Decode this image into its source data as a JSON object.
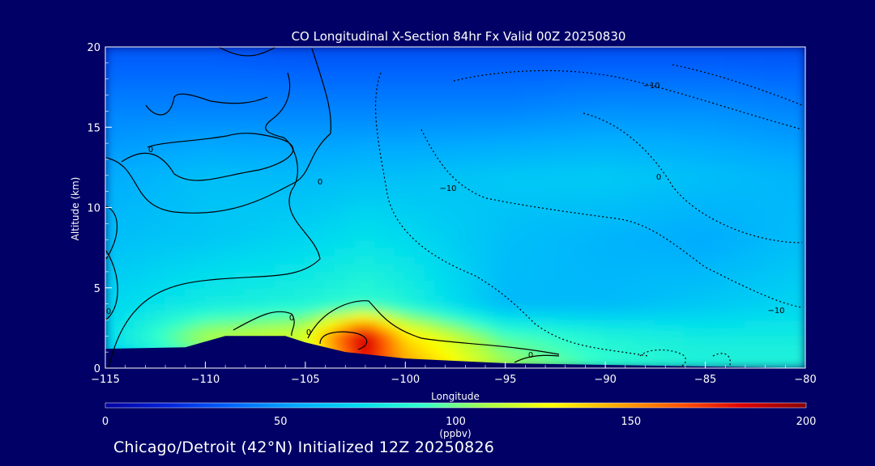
{
  "chart_data": {
    "type": "heatmap",
    "title": "CO Longitudinal X-Section 84hr  Fx Valid 00Z 20250830",
    "xlabel": "Longitude",
    "ylabel": "Altitude (km)",
    "xlim": [
      -115,
      -80
    ],
    "ylim": [
      0,
      20
    ],
    "x_ticks": [
      -115,
      -110,
      -105,
      -100,
      -95,
      -90,
      -85,
      -80
    ],
    "x_tick_labels": [
      "−115",
      "−110",
      "−105",
      "−100",
      "−95",
      "−90",
      "−85",
      "−80"
    ],
    "y_ticks": [
      0,
      5,
      10,
      15,
      20
    ],
    "y_tick_labels": [
      "0",
      "5",
      "10",
      "15",
      "20"
    ],
    "colorbar": {
      "min": 0,
      "max": 200,
      "ticks": [
        0,
        50,
        100,
        150,
        200
      ],
      "tick_labels": [
        "0",
        "50",
        "100",
        "150",
        "200"
      ],
      "units": "(ppbv)",
      "colors": [
        "#0000a0",
        "#0022dd",
        "#0066ff",
        "#00aaff",
        "#00ddee",
        "#33ffcc",
        "#aaff44",
        "#ffff00",
        "#ffaa00",
        "#ff5500",
        "#dd0000",
        "#880000"
      ]
    },
    "co_field_ppbv": [
      {
        "lon": -115,
        "profile": [
          [
            0,
            60
          ],
          [
            2,
            72
          ],
          [
            4,
            70
          ],
          [
            8,
            62
          ],
          [
            12,
            55
          ],
          [
            16,
            45
          ],
          [
            20,
            32
          ]
        ]
      },
      {
        "lon": -110,
        "profile": [
          [
            0,
            90
          ],
          [
            2,
            110
          ],
          [
            4,
            80
          ],
          [
            8,
            65
          ],
          [
            12,
            62
          ],
          [
            16,
            45
          ],
          [
            20,
            32
          ]
        ]
      },
      {
        "lon": -105,
        "profile": [
          [
            0,
            100
          ],
          [
            2,
            120
          ],
          [
            4,
            85
          ],
          [
            8,
            70
          ],
          [
            12,
            60
          ],
          [
            16,
            45
          ],
          [
            20,
            30
          ]
        ]
      },
      {
        "lon": -102,
        "profile": [
          [
            0,
            175
          ],
          [
            2,
            190
          ],
          [
            4,
            90
          ],
          [
            8,
            75
          ],
          [
            12,
            62
          ],
          [
            16,
            45
          ],
          [
            20,
            30
          ]
        ]
      },
      {
        "lon": -100,
        "profile": [
          [
            0,
            150
          ],
          [
            2,
            135
          ],
          [
            4,
            85
          ],
          [
            8,
            72
          ],
          [
            12,
            62
          ],
          [
            16,
            45
          ],
          [
            20,
            30
          ]
        ]
      },
      {
        "lon": -95,
        "profile": [
          [
            0,
            110
          ],
          [
            2,
            95
          ],
          [
            4,
            60
          ],
          [
            8,
            62
          ],
          [
            12,
            65
          ],
          [
            16,
            45
          ],
          [
            20,
            30
          ]
        ]
      },
      {
        "lon": -90,
        "profile": [
          [
            0,
            90
          ],
          [
            2,
            85
          ],
          [
            4,
            60
          ],
          [
            8,
            58
          ],
          [
            12,
            66
          ],
          [
            16,
            48
          ],
          [
            20,
            30
          ]
        ]
      },
      {
        "lon": -85,
        "profile": [
          [
            0,
            85
          ],
          [
            2,
            80
          ],
          [
            4,
            65
          ],
          [
            8,
            55
          ],
          [
            12,
            62
          ],
          [
            16,
            48
          ],
          [
            20,
            30
          ]
        ]
      },
      {
        "lon": -80,
        "profile": [
          [
            0,
            85
          ],
          [
            2,
            80
          ],
          [
            4,
            70
          ],
          [
            8,
            62
          ],
          [
            12,
            58
          ],
          [
            16,
            45
          ],
          [
            20,
            30
          ]
        ]
      }
    ],
    "terrain_km": [
      [
        -115,
        1.2
      ],
      [
        -111,
        1.3
      ],
      [
        -109,
        2.0
      ],
      [
        -106,
        2.0
      ],
      [
        -105,
        1.6
      ],
      [
        -103,
        1.0
      ],
      [
        -100,
        0.6
      ],
      [
        -95,
        0.3
      ],
      [
        -90,
        0.2
      ],
      [
        -85,
        0.1
      ],
      [
        -80,
        0.0
      ]
    ],
    "contour_labels": [
      "0",
      "0",
      "0",
      "0",
      "0",
      "0",
      "0",
      "−10",
      "−10",
      "−10",
      "−10",
      "−10"
    ]
  },
  "footer": "Chicago/Detroit (42°N) Initialized 12Z 20250826"
}
